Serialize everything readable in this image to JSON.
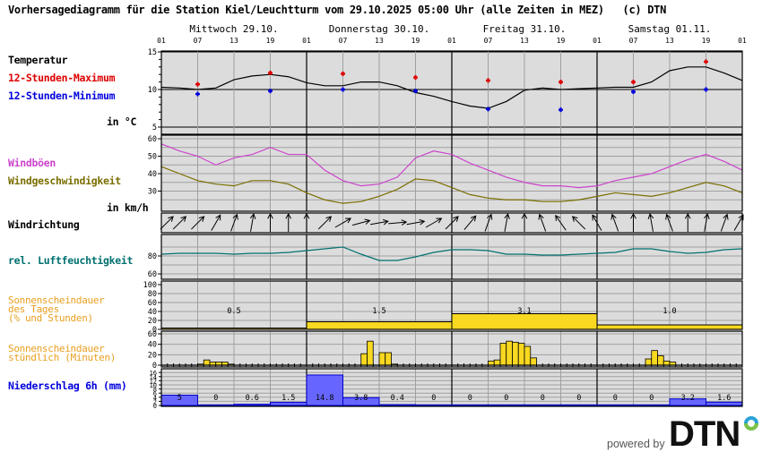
{
  "header": {
    "title": "Vorhersagediagramm für die Station Kiel/Leuchtturm vom 29.10.2025 05:00 Uhr (alle Zeiten in MEZ)   (c) DTN"
  },
  "days": [
    {
      "label": "Mittwoch 29.10."
    },
    {
      "label": "Donnerstag 30.10."
    },
    {
      "label": "Freitag 31.10."
    },
    {
      "label": "Samstag 01.11."
    }
  ],
  "hour_ticks": [
    "01",
    "07",
    "13",
    "19",
    "01",
    "07",
    "13",
    "19",
    "01",
    "07",
    "13",
    "19",
    "01",
    "07",
    "13",
    "19",
    "01"
  ],
  "labels": {
    "temperature": "Temperatur",
    "max12": "12-Stunden-Maximum",
    "min12": "12-Stunden-Minimum",
    "temp_unit": "in °C",
    "gusts": "Windböen",
    "wind_speed": "Windgeschwindigkeit",
    "wind_unit": "in km/h",
    "wind_direction": "Windrichtung",
    "humidity": "rel. Luftfeuchtigkeit",
    "sun_daily": "Sonnenscheindauer\ndes Tages\n(% und Stunden)",
    "sun_hourly": "Sonnenscheindauer\nstündlich (Minuten)",
    "precip": "Niederschlag 6h (mm)"
  },
  "colors": {
    "max": "#dd0000",
    "min": "#0000dd",
    "gusts": "#cc44cc",
    "wind": "#7a6e00",
    "humidity": "#007070",
    "sun": "#f8d820",
    "sun_label": "#e8a020",
    "precip": "#6666ff",
    "precip_label": "#0000dd",
    "plot_bg": "#dcdcdc",
    "grid": "#a0a0a0"
  },
  "branding": {
    "powered_by": "powered by",
    "logo_text": "DTN"
  },
  "chart_data": [
    {
      "type": "line",
      "title": "Temperatur",
      "ylabel": "in °C",
      "ylim": [
        4,
        16
      ],
      "yticks": [
        5,
        10,
        15
      ],
      "x_hours": [
        0,
        3,
        6,
        9,
        12,
        15,
        18,
        21,
        24,
        27,
        30,
        33,
        36,
        39,
        42,
        45,
        48,
        51,
        54,
        57,
        60,
        63,
        66,
        69,
        72,
        75,
        78,
        81,
        84,
        87,
        90,
        93,
        96
      ],
      "series": [
        {
          "name": "Temperatur",
          "values": [
            10.3,
            10.2,
            10.0,
            10.2,
            11.3,
            11.8,
            12.0,
            11.7,
            10.9,
            10.5,
            10.5,
            11.0,
            11.0,
            10.5,
            9.6,
            9.1,
            8.4,
            7.8,
            7.5,
            8.4,
            9.9,
            10.2,
            10.0,
            10.1,
            10.2,
            10.3,
            10.3,
            11.0,
            12.5,
            13.0,
            13.0,
            12.2,
            11.2
          ]
        }
      ],
      "points": {
        "max12": [
          {
            "hour": 6,
            "value": 10.7
          },
          {
            "hour": 18,
            "value": 12.2
          },
          {
            "hour": 30,
            "value": 12.1
          },
          {
            "hour": 42,
            "value": 11.6
          },
          {
            "hour": 54,
            "value": 11.2
          },
          {
            "hour": 66,
            "value": 11.0
          },
          {
            "hour": 78,
            "value": 11.0
          },
          {
            "hour": 90,
            "value": 13.7
          }
        ],
        "min12": [
          {
            "hour": 6,
            "value": 9.4
          },
          {
            "hour": 18,
            "value": 9.8
          },
          {
            "hour": 30,
            "value": 10.0
          },
          {
            "hour": 42,
            "value": 9.8
          },
          {
            "hour": 54,
            "value": 7.4
          },
          {
            "hour": 66,
            "value": 7.3
          },
          {
            "hour": 78,
            "value": 9.7
          },
          {
            "hour": 90,
            "value": 10.0
          }
        ]
      }
    },
    {
      "type": "line",
      "title": "Wind",
      "ylabel": "in km/h",
      "ylim": [
        20,
        62
      ],
      "yticks": [
        20,
        30,
        40,
        50,
        60
      ],
      "x_hours": [
        0,
        3,
        6,
        9,
        12,
        15,
        18,
        21,
        24,
        27,
        30,
        33,
        36,
        39,
        42,
        45,
        48,
        51,
        54,
        57,
        60,
        63,
        66,
        69,
        72,
        75,
        78,
        81,
        84,
        87,
        90,
        93,
        96
      ],
      "series": [
        {
          "name": "Windböen",
          "values": [
            57,
            53,
            50,
            45,
            49,
            51,
            55,
            51,
            51,
            42,
            36,
            33,
            34,
            38,
            49,
            53,
            51,
            46,
            42,
            38,
            35,
            33,
            33,
            32,
            33,
            36,
            38,
            40,
            44,
            48,
            51,
            47,
            42
          ]
        },
        {
          "name": "Windgeschwindigkeit",
          "values": [
            44,
            40,
            36,
            34,
            33,
            36,
            36,
            34,
            29,
            25,
            23,
            24,
            27,
            31,
            37,
            36,
            32,
            28,
            26,
            25,
            25,
            24,
            24,
            25,
            27,
            29,
            28,
            27,
            29,
            32,
            35,
            33,
            29
          ]
        }
      ]
    },
    {
      "type": "line",
      "title": "Windrichtung",
      "x_hours": [
        0,
        3,
        6,
        9,
        12,
        15,
        18,
        21,
        24,
        27,
        30,
        33,
        36,
        39,
        42,
        45,
        48,
        51,
        54,
        57,
        60,
        63,
        66,
        69,
        72,
        75,
        78,
        81,
        84,
        87,
        90,
        93,
        96
      ],
      "series": [
        {
          "name": "Richtung (Grad, wohin)",
          "values": [
            45,
            45,
            45,
            30,
            20,
            10,
            0,
            0,
            0,
            45,
            60,
            75,
            80,
            85,
            80,
            60,
            45,
            40,
            20,
            10,
            0,
            -20,
            -35,
            -45,
            -30,
            -20,
            0,
            -10,
            -20,
            0,
            10,
            20,
            30
          ]
        }
      ]
    },
    {
      "type": "line",
      "title": "rel. Luftfeuchtigkeit",
      "ylim": [
        55,
        100
      ],
      "yticks": [
        60,
        80
      ],
      "x_hours": [
        0,
        3,
        6,
        9,
        12,
        15,
        18,
        21,
        24,
        27,
        30,
        33,
        36,
        39,
        42,
        45,
        48,
        51,
        54,
        57,
        60,
        63,
        66,
        69,
        72,
        75,
        78,
        81,
        84,
        87,
        90,
        93,
        96
      ],
      "series": [
        {
          "name": "rel. Luftfeuchtigkeit",
          "values": [
            82,
            83,
            83,
            83,
            82,
            83,
            83,
            84,
            86,
            88,
            90,
            82,
            75,
            75,
            79,
            84,
            87,
            87,
            86,
            82,
            82,
            81,
            81,
            82,
            83,
            84,
            88,
            88,
            85,
            83,
            84,
            87,
            88
          ]
        }
      ]
    },
    {
      "type": "bar",
      "title": "Sonnenscheindauer des Tages (% und Stunden)",
      "ylim": [
        0,
        100
      ],
      "yticks": [
        0,
        20,
        40,
        60,
        80,
        100
      ],
      "categories": [
        "29.10.",
        "30.10.",
        "31.10.",
        "01.11."
      ],
      "series": [
        {
          "name": "Prozent",
          "values": [
            3,
            17,
            35,
            10
          ]
        },
        {
          "name": "Stunden",
          "values": [
            0.5,
            1.5,
            3.1,
            1.0
          ]
        }
      ]
    },
    {
      "type": "bar",
      "title": "Sonnenscheindauer stündlich (Minuten)",
      "ylim": [
        0,
        60
      ],
      "yticks": [
        0,
        20,
        40,
        60
      ],
      "bars": [
        {
          "hour": 6,
          "value": 2
        },
        {
          "hour": 7,
          "value": 10
        },
        {
          "hour": 8,
          "value": 6
        },
        {
          "hour": 9,
          "value": 6
        },
        {
          "hour": 10,
          "value": 6
        },
        {
          "hour": 11,
          "value": 2
        },
        {
          "hour": 33,
          "value": 22
        },
        {
          "hour": 34,
          "value": 46
        },
        {
          "hour": 36,
          "value": 24
        },
        {
          "hour": 37,
          "value": 24
        },
        {
          "hour": 38,
          "value": 2
        },
        {
          "hour": 54,
          "value": 8
        },
        {
          "hour": 55,
          "value": 10
        },
        {
          "hour": 56,
          "value": 42
        },
        {
          "hour": 57,
          "value": 46
        },
        {
          "hour": 58,
          "value": 44
        },
        {
          "hour": 59,
          "value": 42
        },
        {
          "hour": 60,
          "value": 36
        },
        {
          "hour": 61,
          "value": 14
        },
        {
          "hour": 80,
          "value": 12
        },
        {
          "hour": 81,
          "value": 28
        },
        {
          "hour": 82,
          "value": 18
        },
        {
          "hour": 83,
          "value": 8
        },
        {
          "hour": 84,
          "value": 6
        }
      ]
    },
    {
      "type": "bar",
      "title": "Niederschlag 6h (mm)",
      "ylim": [
        0,
        16
      ],
      "yticks": [
        0,
        2,
        4,
        6,
        8,
        10,
        12,
        14,
        16
      ],
      "categories": [
        "01-07",
        "07-13",
        "13-19",
        "19-01",
        "01-07",
        "07-13",
        "13-19",
        "19-01",
        "01-07",
        "07-13",
        "13-19",
        "19-01",
        "01-07",
        "07-13",
        "13-19",
        "19-01"
      ],
      "values": [
        5,
        0,
        0.6,
        1.5,
        14.8,
        3.8,
        0.4,
        0,
        0,
        0,
        0,
        0,
        0,
        0,
        3.2,
        1.6
      ]
    }
  ]
}
